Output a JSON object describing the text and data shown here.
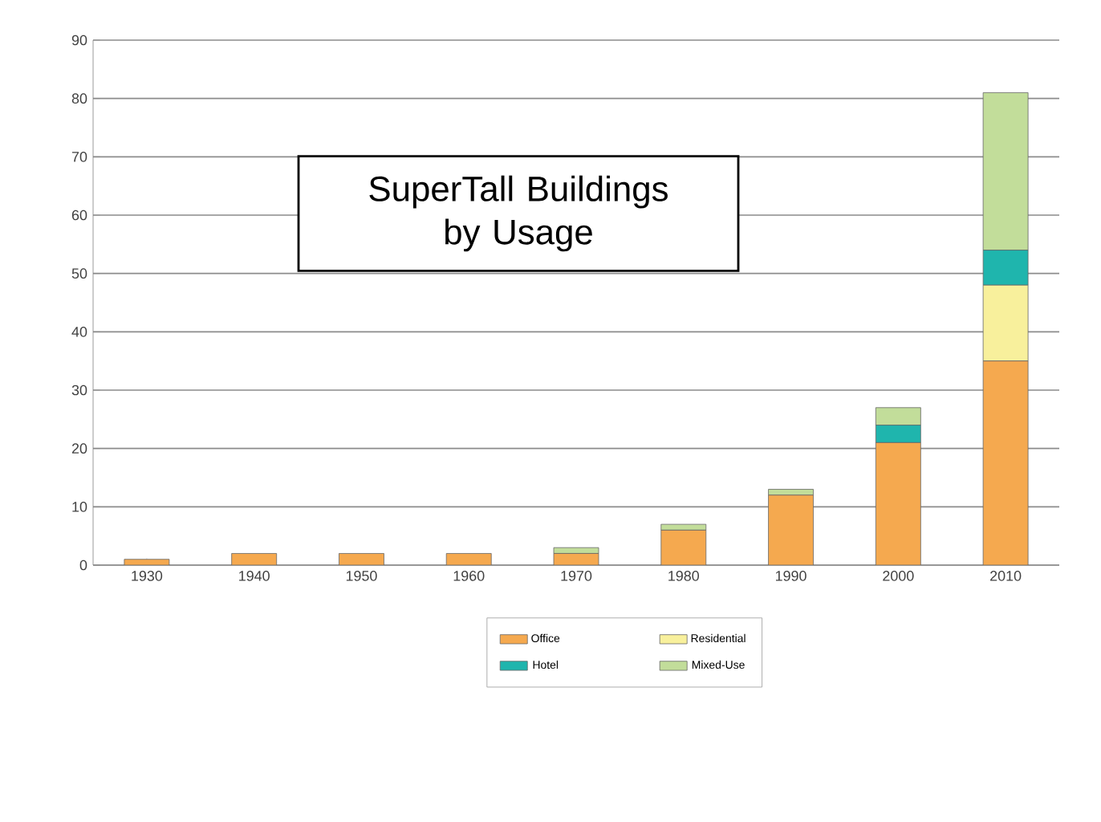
{
  "chart_data": {
    "type": "bar",
    "title": "SuperTall Buildings by Usage",
    "stacked": true,
    "categories": [
      "1930",
      "1940",
      "1950",
      "1960",
      "1970",
      "1980",
      "1990",
      "2000",
      "2010"
    ],
    "series": [
      {
        "name": "Office",
        "color": "#f5a94f",
        "values": [
          1,
          2,
          2,
          2,
          2,
          6,
          12,
          21,
          35
        ]
      },
      {
        "name": "Residential",
        "color": "#f8f09c",
        "values": [
          0,
          0,
          0,
          0,
          0,
          0,
          0,
          0,
          13
        ]
      },
      {
        "name": "Hotel",
        "color": "#1fb5ad",
        "values": [
          0,
          0,
          0,
          0,
          0,
          0,
          0,
          3,
          6
        ]
      },
      {
        "name": "Mixed-Use",
        "color": "#c2dd9a",
        "values": [
          0,
          0,
          0,
          0,
          1,
          1,
          1,
          3,
          27
        ]
      }
    ],
    "ylim": [
      0,
      90
    ],
    "yticks": [
      0,
      10,
      20,
      30,
      40,
      50,
      60,
      70,
      80,
      90
    ],
    "grid": "y",
    "legend": "bottom"
  }
}
